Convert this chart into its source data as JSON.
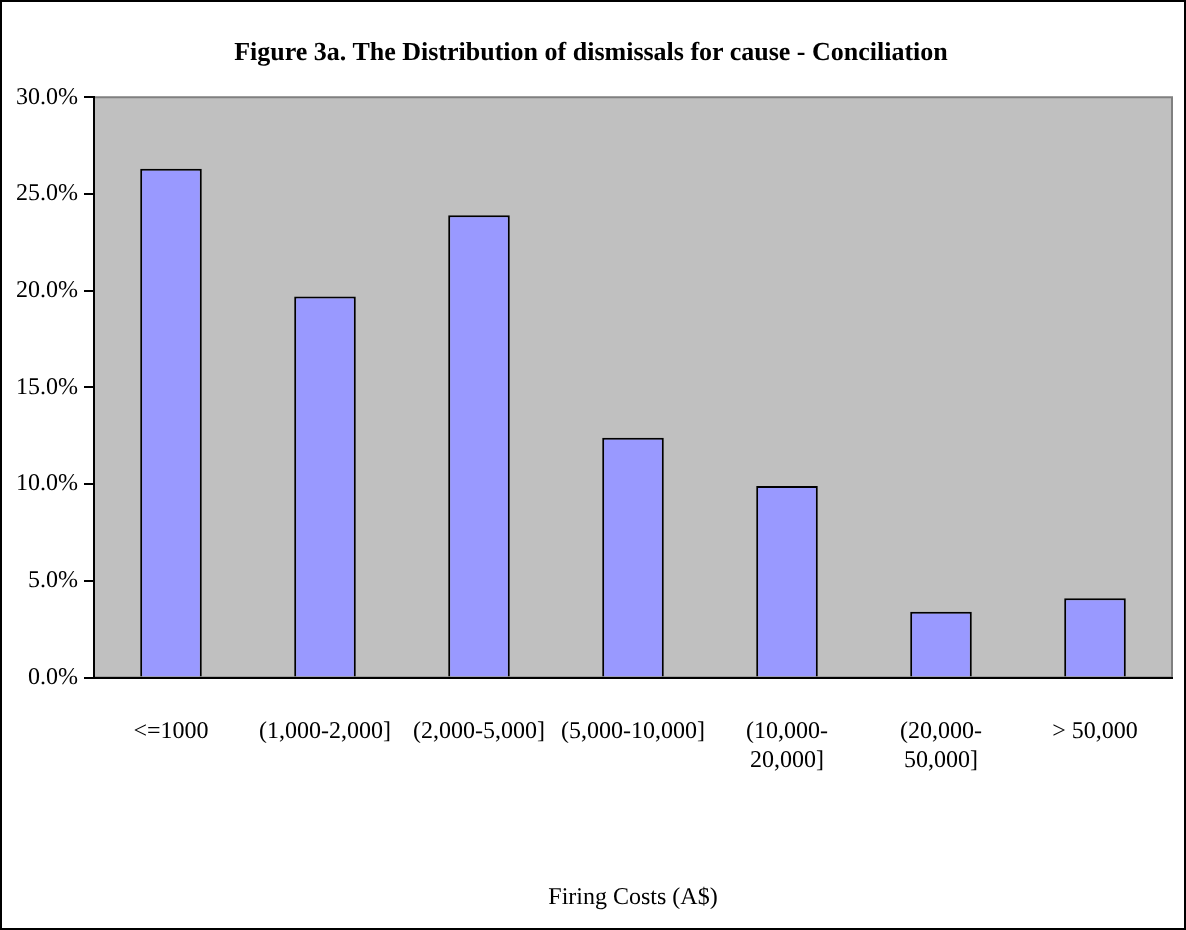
{
  "chart_data": {
    "type": "bar",
    "title": "Figure 3a. The Distribution of dismissals for cause - Conciliation",
    "xlabel": "Firing Costs (A$)",
    "categories": [
      "<=1000",
      "(1,000-2,000]",
      "(2,000-5,000]",
      "(5,000-10,000]",
      "(10,000-20,000]",
      "(20,000-50,000]",
      "> 50,000"
    ],
    "values": [
      26.3,
      19.7,
      23.9,
      12.4,
      9.9,
      3.4,
      4.1
    ],
    "color": "#9999ff",
    "ylim": [
      0,
      30
    ],
    "yticks": [
      {
        "value": 0,
        "label": "0.0%"
      },
      {
        "value": 5,
        "label": "5.0%"
      },
      {
        "value": 10,
        "label": "10.0%"
      },
      {
        "value": 15,
        "label": "15.0%"
      },
      {
        "value": 20,
        "label": "20.0%"
      },
      {
        "value": 25,
        "label": "25.0%"
      },
      {
        "value": 30,
        "label": "30.0%"
      }
    ],
    "grid": false,
    "legend": false
  }
}
